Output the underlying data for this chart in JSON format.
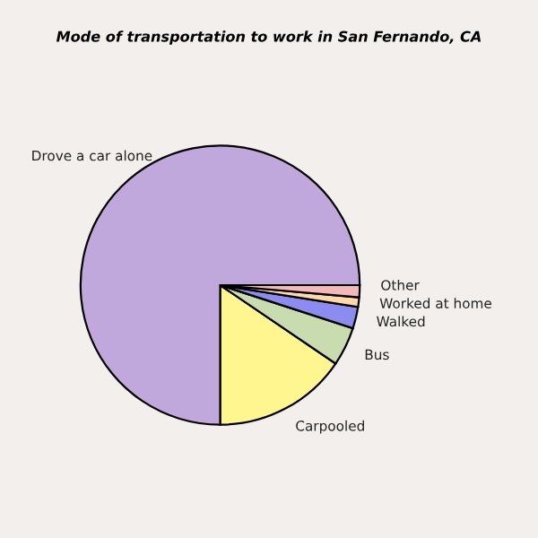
{
  "chart_data": {
    "type": "pie",
    "title": "Mode of transportation to work in San Fernando, CA",
    "categories": [
      "Carpooled",
      "Bus",
      "Walked",
      "Worked at home",
      "Other",
      "Drove a car alone"
    ],
    "values": [
      15.5,
      4.5,
      2.5,
      1.1,
      1.4,
      75.0
    ],
    "colors": [
      "#fff68f",
      "#c8dcb0",
      "#8c8cf0",
      "#ffd8a8",
      "#f4b8b8",
      "#c0a8dc"
    ]
  }
}
